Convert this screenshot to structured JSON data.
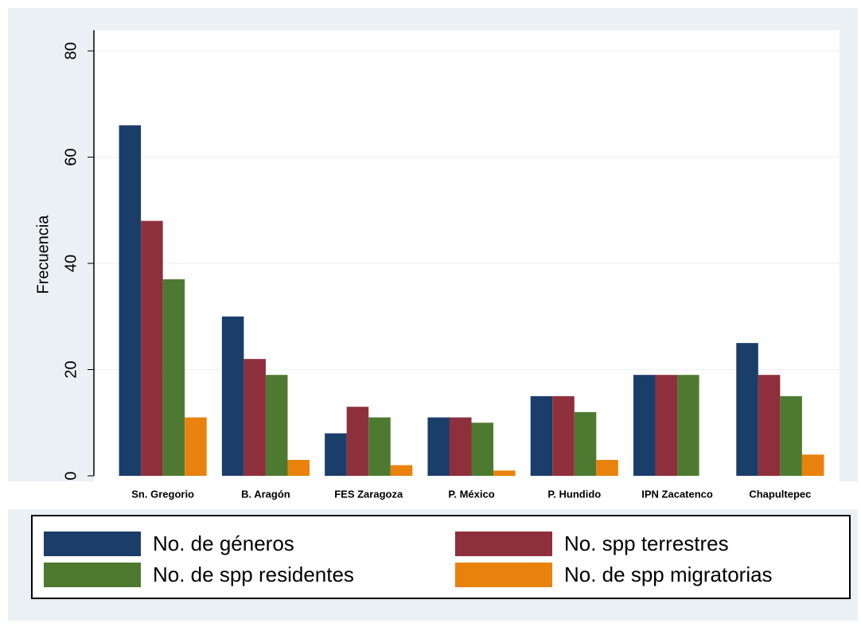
{
  "chart_data": {
    "type": "bar",
    "y_label": "Frecuencia",
    "categories": [
      "Sn. Gregorio",
      "B. Aragón",
      "FES Zaragoza",
      "P. México",
      "P. Hundido",
      "IPN Zacatenco",
      "Chapultepec"
    ],
    "series": [
      {
        "name": "No. de géneros",
        "color": "#1b3d6a",
        "values": [
          66,
          30,
          8,
          11,
          15,
          19,
          25
        ]
      },
      {
        "name": "No. spp terrestres",
        "color": "#8e2f3c",
        "values": [
          48,
          22,
          13,
          11,
          15,
          19,
          19
        ]
      },
      {
        "name": "No. de spp residentes",
        "color": "#4d7a30",
        "values": [
          37,
          19,
          11,
          10,
          12,
          19,
          15
        ]
      },
      {
        "name": "No. de spp migratorias",
        "color": "#e8820c",
        "values": [
          11,
          3,
          2,
          1,
          3,
          0,
          4
        ]
      }
    ],
    "ylim": [
      0,
      80
    ],
    "yticks": [
      0,
      20,
      40,
      60,
      80
    ],
    "grid": true,
    "legend": "bottom"
  }
}
